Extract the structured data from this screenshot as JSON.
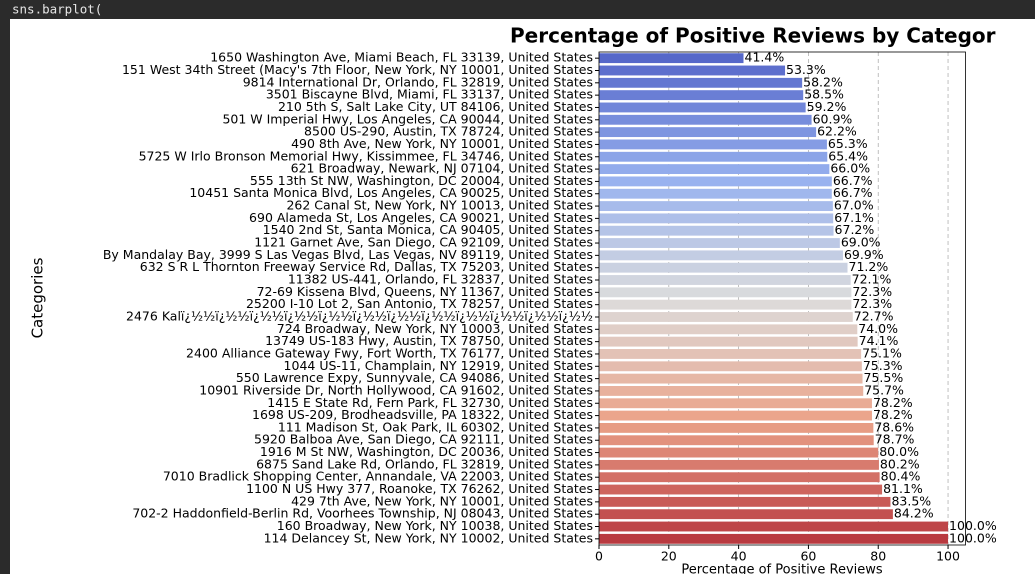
{
  "code_line": "sns.barplot(",
  "chart_data": {
    "type": "barh",
    "title": "Percentage of Positive Reviews by Categor",
    "xlabel": "Percentage of Positive Reviews",
    "ylabel": "Categories",
    "categories": [
      "1650 Washington Ave, Miami Beach, FL 33139, United States",
      "151 West 34th Street (Macy's 7th Floor, New York, NY 10001, United States",
      "9814 International Dr, Orlando, FL 32819, United States",
      "3501 Biscayne Blvd, Miami, FL 33137, United States",
      "210 5th S, Salt Lake City, UT 84106, United States",
      "501 W Imperial Hwy, Los Angeles, CA 90044, United States",
      "8500 US-290, Austin, TX 78724, United States",
      "490 8th Ave, New York, NY 10001, United States",
      "5725 W Irlo Bronson Memorial Hwy, Kissimmee, FL 34746, United States",
      "621 Broadway, Newark, NJ 07104, United States",
      "555 13th St NW, Washington, DC 20004, United States",
      "10451 Santa Monica Blvd, Los Angeles, CA 90025, United States",
      "262 Canal St, New York, NY 10013, United States",
      "690 Alameda St, Los Angeles, CA 90021, United States",
      "1540 2nd St, Santa Monica, CA 90405, United States",
      "1121 Garnet Ave, San Diego, CA 92109, United States",
      "By Mandalay Bay, 3999 S Las Vegas Blvd, Las Vegas, NV 89119, United States",
      "632 S R L Thornton Freeway Service Rd, Dallas, TX 75203, United States",
      "11382 US-441, Orlando, FL 32837, United States",
      "72-69 Kissena Blvd, Queens, NY 11367, United States",
      "25200 I-10 Lot 2, San Antonio, TX 78257, United States",
      "2476 Kalï¿½½ï¿½½ï¿½½ï¿½½ï¿½½ï¿½½ï¿½½ï¿½½ï¿½½ï¿½½ï¿½½ï¿½½",
      "724 Broadway, New York, NY 10003, United States",
      "13749 US-183 Hwy, Austin, TX 78750, United States",
      "2400 Alliance Gateway Fwy, Fort Worth, TX 76177, United States",
      "1044 US-11, Champlain, NY 12919, United States",
      "550 Lawrence Expy, Sunnyvale, CA 94086, United States",
      "10901 Riverside Dr, North Hollywood, CA 91602, United States",
      "1415 E State Rd, Fern Park, FL 32730, United States",
      "1698 US-209, Brodheadsville, PA 18322, United States",
      "111 Madison St, Oak Park, IL 60302, United States",
      "5920 Balboa Ave, San Diego, CA 92111, United States",
      "1916 M St NW, Washington, DC 20036, United States",
      "6875 Sand Lake Rd, Orlando, FL 32819, United States",
      "7010 Bradlick Shopping Center, Annandale, VA 22003, United States",
      "1100 N US Hwy 377, Roanoke, TX 76262, United States",
      "429 7th Ave, New York, NY 10001, United States",
      "702-2 Haddonfield-Berlin Rd, Voorhees Township, NJ 08043, United States",
      "160 Broadway, New York, NY 10038, United States",
      "114 Delancey St, New York, NY 10002, United States"
    ],
    "values": [
      41.4,
      53.3,
      58.2,
      58.5,
      59.2,
      60.9,
      62.2,
      65.3,
      65.4,
      66.0,
      66.7,
      66.7,
      67.0,
      67.1,
      67.2,
      69.0,
      69.9,
      71.2,
      72.1,
      72.3,
      72.3,
      72.7,
      74.0,
      74.1,
      75.1,
      75.3,
      75.5,
      75.7,
      78.2,
      78.2,
      78.6,
      78.7,
      80.0,
      80.2,
      80.4,
      81.1,
      83.5,
      84.2,
      100.0,
      100.0
    ],
    "value_labels": [
      "41.4%",
      "53.3%",
      "58.2%",
      "58.5%",
      "59.2%",
      "60.9%",
      "62.2%",
      "65.3%",
      "65.4%",
      "66.0%",
      "66.7%",
      "66.7%",
      "67.0%",
      "67.1%",
      "67.2%",
      "69.0%",
      "69.9%",
      "71.2%",
      "72.1%",
      "72.3%",
      "72.3%",
      "72.7%",
      "74.0%",
      "74.1%",
      "75.1%",
      "75.3%",
      "75.5%",
      "75.7%",
      "78.2%",
      "78.2%",
      "78.6%",
      "78.7%",
      "80.0%",
      "80.2%",
      "80.4%",
      "81.1%",
      "83.5%",
      "84.2%",
      "100.0%",
      "100.0%"
    ],
    "palette": [
      "#5668c9",
      "#97b1ef",
      "#dcdcdc",
      "#eba48a",
      "#b93a40"
    ],
    "xlim": [
      0,
      105
    ],
    "xticks": [
      0,
      20,
      40,
      60,
      80,
      100
    ],
    "grid": true
  }
}
